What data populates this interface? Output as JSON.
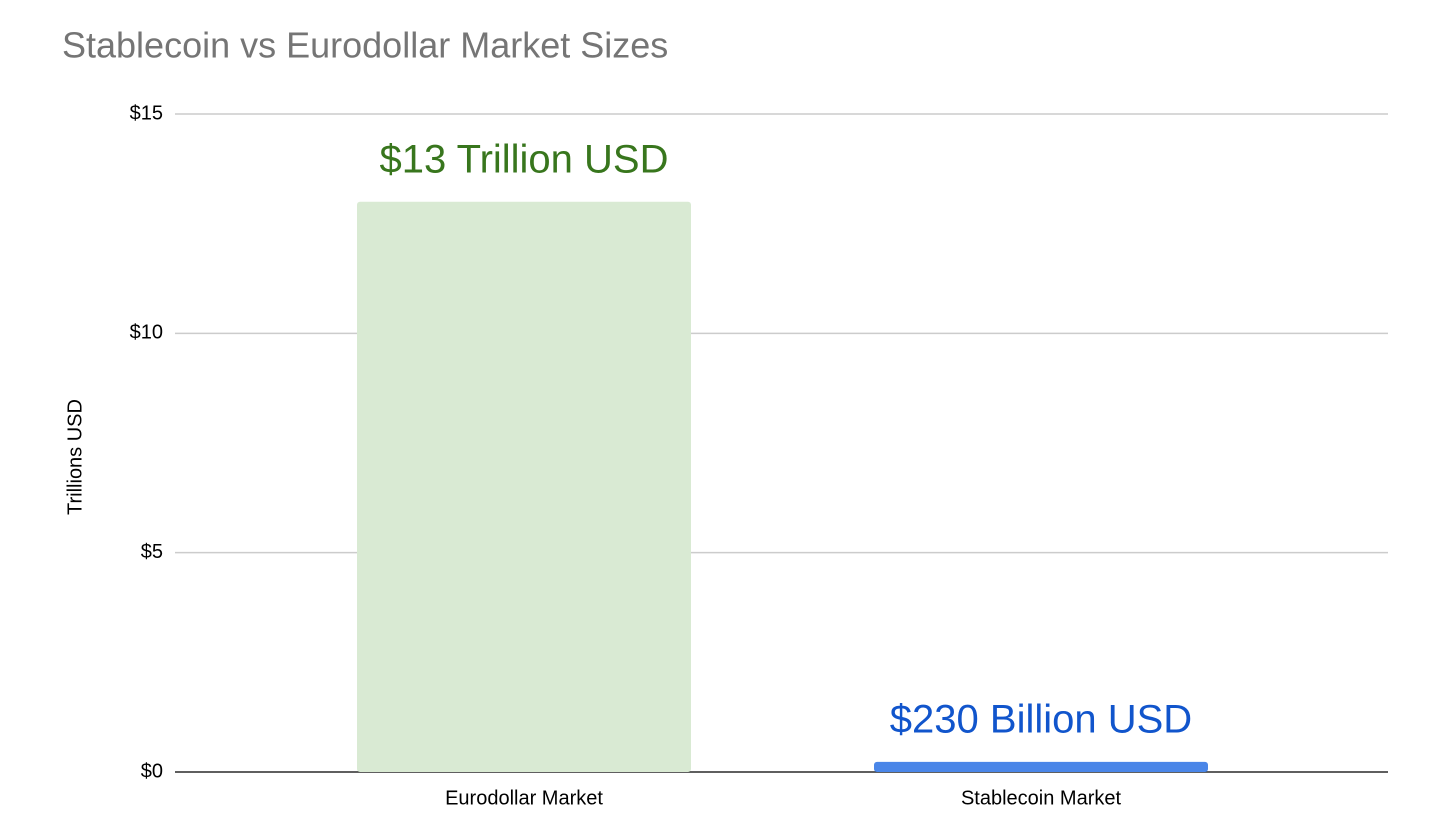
{
  "chart_data": {
    "type": "bar",
    "title": "Stablecoin vs Eurodollar Market Sizes",
    "y_label": "Trillions USD",
    "categories": [
      "Eurodollar Market",
      "Stablecoin Market"
    ],
    "values": [
      13,
      0.23
    ],
    "value_labels": [
      "$13 Trillion USD",
      "$230 Billion USD"
    ],
    "colors": [
      "#d9ead3",
      "#4a86e8"
    ],
    "label_colors": [
      "#38761d",
      "#1155cc"
    ],
    "ylim": [
      0,
      15
    ],
    "yticks": [
      {
        "value": 0,
        "label": "$0"
      },
      {
        "value": 5,
        "label": "$5"
      },
      {
        "value": 10,
        "label": "$10"
      },
      {
        "value": 15,
        "label": "$15"
      }
    ],
    "grid": true
  }
}
